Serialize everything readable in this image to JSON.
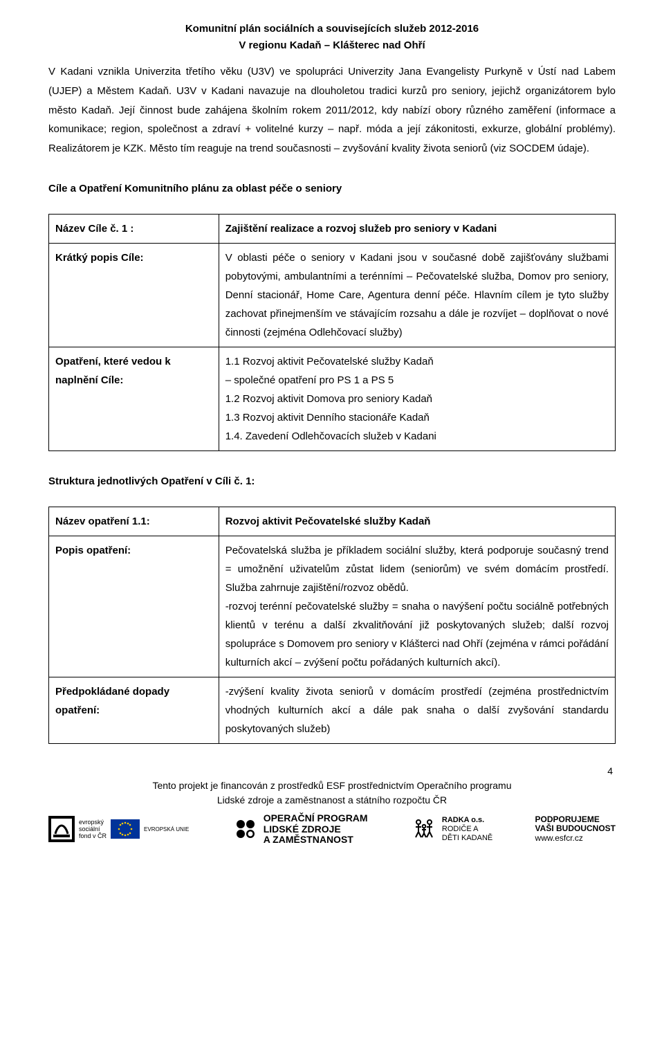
{
  "header": {
    "title": "Komunitní plán sociálních a souvisejících služeb 2012-2016",
    "subtitle": "V regionu Kadaň – Klášterec nad Ohří"
  },
  "intro_paragraph": "V Kadani vznikla Univerzita třetího věku (U3V) ve spolupráci Univerzity Jana Evangelisty Purkyně v Ústí nad Labem (UJEP) a Městem Kadaň. U3V v Kadani navazuje na dlouholetou tradici kurzů pro seniory, jejichž organizátorem bylo město Kadaň. Její činnost bude zahájena školním rokem 2011/2012, kdy nabízí obory různého zaměření (informace a komunikace; region, společnost a zdraví + volitelné kurzy – např. móda a její zákonitosti, exkurze, globální problémy). Realizátorem je KZK. Město tím reaguje na trend současnosti – zvyšování kvality života seniorů (viz SOCDEM údaje).",
  "section_heading": "Cíle a Opatření Komunitního plánu za oblast péče o seniory",
  "table1": {
    "rows": [
      {
        "label": "Název Cíle č. 1 :",
        "value_bold": "Zajištění realizace a rozvoj služeb pro seniory v Kadani",
        "value_rest": ""
      },
      {
        "label": "Krátký popis Cíle:",
        "value_bold": "",
        "value_rest": "V oblasti péče o seniory v Kadani jsou v současné době zajišťovány službami pobytovými, ambulantními a terénními – Pečovatelské služba, Domov pro seniory, Denní stacionář, Home Care, Agentura denní péče. Hlavním cílem je tyto služby zachovat přinejmenším ve stávajícím rozsahu a dále je rozvíjet – doplňovat o nové činnosti (zejména Odlehčovací služby)"
      },
      {
        "label": "Opatření, které vedou k naplnění Cíle:",
        "value_bold": "",
        "value_rest": "1.1 Rozvoj aktivit Pečovatelské služby Kadaň\n– společné opatření pro PS 1 a PS 5\n1.2 Rozvoj aktivit Domova pro seniory Kadaň\n1.3 Rozvoj aktivit Denního stacionáře Kadaň\n1.4. Zavedení Odlehčovacích služeb v Kadani"
      }
    ]
  },
  "struct_heading": "Struktura jednotlivých Opatření v Cíli č. 1:",
  "table2": {
    "rows": [
      {
        "label": "Název opatření 1.1:",
        "value_bold": "Rozvoj aktivit Pečovatelské služby Kadaň",
        "value_rest": ""
      },
      {
        "label": "Popis opatření:",
        "value_bold": "",
        "value_rest": "Pečovatelská služba je příkladem sociální služby, která podporuje současný trend = umožnění uživatelům zůstat lidem (seniorům) ve svém domácím prostředí. Služba zahrnuje zajištění/rozvoz obědů.\n-rozvoj terénní pečovatelské služby = snaha o navýšení počtu sociálně potřebných klientů v terénu a další zkvalitňování již poskytovaných služeb; další rozvoj spolupráce s Domovem pro seniory v Klášterci nad Ohří (zejména v rámci pořádání kulturních akcí – zvýšení počtu pořádaných kulturních akcí)."
      },
      {
        "label": "Předpokládané dopady opatření:",
        "value_bold": "",
        "value_rest": "-zvýšení kvality života seniorů v domácím prostředí (zejména prostřednictvím vhodných kulturních akcí a dále pak snaha o další zvyšování standardu poskytovaných služeb)"
      }
    ]
  },
  "page_number": "4",
  "footer": {
    "line1": "Tento projekt je financován z prostředků ESF prostřednictvím Operačního programu",
    "line2": "Lidské zdroje a zaměstnanost a státního rozpočtu ČR"
  },
  "logos": {
    "esf": {
      "l1": "evropský",
      "l2": "sociální",
      "l3": "fond v ČR",
      "eu": "EVROPSKÁ UNIE"
    },
    "op": {
      "l1": "OPERAČNÍ PROGRAM",
      "l2": "LIDSKÉ ZDROJE",
      "l3": "A ZAMĚSTNANOST"
    },
    "radka": {
      "l1": "RADKA o.s.",
      "l2": "RODIČE A",
      "l3": "DĚTI KADANĚ"
    },
    "pod": {
      "l1": "PODPORUJEME",
      "l2": "VAŠI BUDOUCNOST",
      "l3": "www.esfcr.cz"
    }
  },
  "colors": {
    "text": "#000000",
    "border": "#000000",
    "eu_blue": "#003399",
    "eu_yellow": "#ffcc00"
  }
}
